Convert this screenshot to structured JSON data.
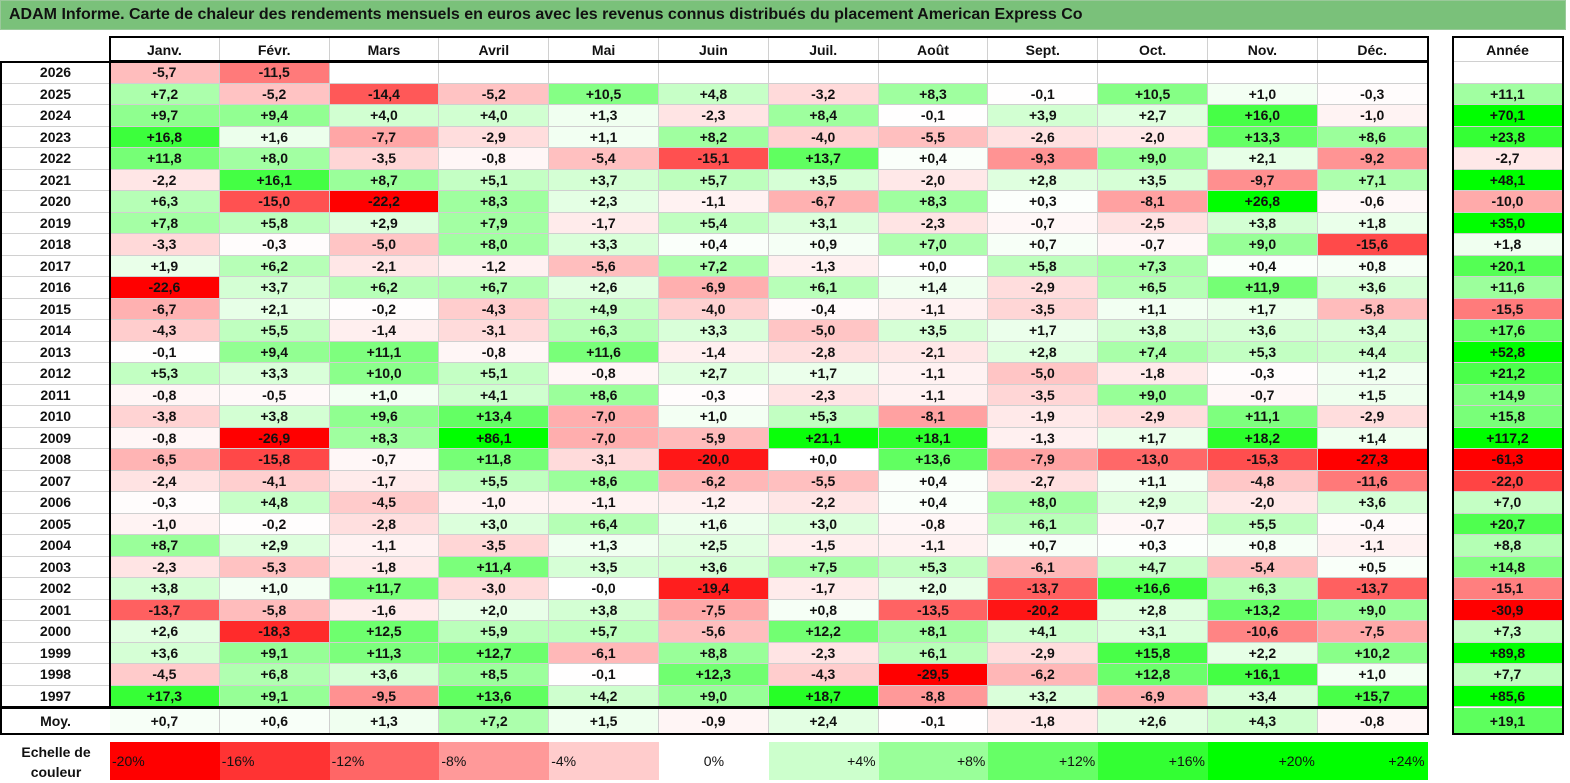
{
  "title": "ADAM Informe. Carte de chaleur des rendements mensuels en euros avec les revenus connus distribués du placement American Express Co",
  "chart_data": {
    "type": "heatmap",
    "title": "ADAM Informe. Carte de chaleur des rendements mensuels en euros avec les revenus connus distribués du placement American Express Co",
    "columns": [
      "Janv.",
      "Févr.",
      "Mars",
      "Avril",
      "Mai",
      "Juin",
      "Juil.",
      "Août",
      "Sept.",
      "Oct.",
      "Nov.",
      "Déc."
    ],
    "year_header": "Année",
    "rows": [
      {
        "label": "2026",
        "values": [
          "-5,7",
          "-11,5",
          "",
          "",
          "",
          "",
          "",
          "",
          "",
          "",
          "",
          ""
        ],
        "year": ""
      },
      {
        "label": "2025",
        "values": [
          "+7,2",
          "-5,2",
          "-14,4",
          "-5,2",
          "+10,5",
          "+4,8",
          "-3,2",
          "+8,3",
          "-0,1",
          "+10,5",
          "+1,0",
          "-0,3"
        ],
        "year": "+11,1"
      },
      {
        "label": "2024",
        "values": [
          "+9,7",
          "+9,4",
          "+4,0",
          "+4,0",
          "+1,3",
          "-2,3",
          "+8,4",
          "-0,1",
          "+3,9",
          "+2,7",
          "+16,0",
          "-1,0"
        ],
        "year": "+70,1"
      },
      {
        "label": "2023",
        "values": [
          "+16,8",
          "+1,6",
          "-7,7",
          "-2,9",
          "+1,1",
          "+8,2",
          "-4,0",
          "-5,5",
          "-2,6",
          "-2,0",
          "+13,3",
          "+8,6"
        ],
        "year": "+23,8"
      },
      {
        "label": "2022",
        "values": [
          "+11,8",
          "+8,0",
          "-3,5",
          "-0,8",
          "-5,4",
          "-15,1",
          "+13,7",
          "+0,4",
          "-9,3",
          "+9,0",
          "+2,1",
          "-9,2"
        ],
        "year": "-2,7"
      },
      {
        "label": "2021",
        "values": [
          "-2,2",
          "+16,1",
          "+8,7",
          "+5,1",
          "+3,7",
          "+5,7",
          "+3,5",
          "-2,0",
          "+2,8",
          "+3,5",
          "-9,7",
          "+7,1"
        ],
        "year": "+48,1"
      },
      {
        "label": "2020",
        "values": [
          "+6,3",
          "-15,0",
          "-22,2",
          "+8,3",
          "+2,3",
          "-1,1",
          "-6,7",
          "+8,3",
          "+0,3",
          "-8,1",
          "+26,8",
          "-0,6"
        ],
        "year": "-10,0"
      },
      {
        "label": "2019",
        "values": [
          "+7,8",
          "+5,8",
          "+2,9",
          "+7,9",
          "-1,7",
          "+5,4",
          "+3,1",
          "-2,3",
          "-0,7",
          "-2,5",
          "+3,8",
          "+1,8"
        ],
        "year": "+35,0"
      },
      {
        "label": "2018",
        "values": [
          "-3,3",
          "-0,3",
          "-5,0",
          "+8,0",
          "+3,3",
          "+0,4",
          "+0,9",
          "+7,0",
          "+0,7",
          "-0,7",
          "+9,0",
          "-15,6"
        ],
        "year": "+1,8"
      },
      {
        "label": "2017",
        "values": [
          "+1,9",
          "+6,2",
          "-2,1",
          "-1,2",
          "-5,6",
          "+7,2",
          "-1,3",
          "+0,0",
          "+5,8",
          "+7,3",
          "+0,4",
          "+0,8"
        ],
        "year": "+20,1"
      },
      {
        "label": "2016",
        "values": [
          "-22,6",
          "+3,7",
          "+6,2",
          "+6,7",
          "+2,6",
          "-6,9",
          "+6,1",
          "+1,4",
          "-2,9",
          "+6,5",
          "+11,9",
          "+3,6"
        ],
        "year": "+11,6"
      },
      {
        "label": "2015",
        "values": [
          "-6,7",
          "+2,1",
          "-0,2",
          "-4,3",
          "+4,9",
          "-4,0",
          "-0,4",
          "-1,1",
          "-3,5",
          "+1,1",
          "+1,7",
          "-5,8"
        ],
        "year": "-15,5"
      },
      {
        "label": "2014",
        "values": [
          "-4,3",
          "+5,5",
          "-1,4",
          "-3,1",
          "+6,3",
          "+3,3",
          "-5,0",
          "+3,5",
          "+1,7",
          "+3,8",
          "+3,6",
          "+3,4"
        ],
        "year": "+17,6"
      },
      {
        "label": "2013",
        "values": [
          "-0,1",
          "+9,4",
          "+11,1",
          "-0,8",
          "+11,6",
          "-1,4",
          "-2,8",
          "-2,1",
          "+2,8",
          "+7,4",
          "+5,3",
          "+4,4"
        ],
        "year": "+52,8"
      },
      {
        "label": "2012",
        "values": [
          "+5,3",
          "+3,3",
          "+10,0",
          "+5,1",
          "-0,8",
          "+2,7",
          "+1,7",
          "-1,1",
          "-5,0",
          "-1,8",
          "-0,3",
          "+1,2"
        ],
        "year": "+21,2"
      },
      {
        "label": "2011",
        "values": [
          "-0,8",
          "-0,5",
          "+1,0",
          "+4,1",
          "+8,6",
          "-0,3",
          "-2,3",
          "-1,1",
          "-3,5",
          "+9,0",
          "-0,7",
          "+1,5"
        ],
        "year": "+14,9"
      },
      {
        "label": "2010",
        "values": [
          "-3,8",
          "+3,8",
          "+9,6",
          "+13,4",
          "-7,0",
          "+1,0",
          "+5,3",
          "-8,1",
          "-1,9",
          "-2,9",
          "+11,1",
          "-2,9"
        ],
        "year": "+15,8"
      },
      {
        "label": "2009",
        "values": [
          "-0,8",
          "-26,9",
          "+8,3",
          "+86,1",
          "-7,0",
          "-5,9",
          "+21,1",
          "+18,1",
          "-1,3",
          "+1,7",
          "+18,2",
          "+1,4"
        ],
        "year": "+117,2"
      },
      {
        "label": "2008",
        "values": [
          "-6,5",
          "-15,8",
          "-0,7",
          "+11,8",
          "-3,1",
          "-20,0",
          "+0,0",
          "+13,6",
          "-7,9",
          "-13,0",
          "-15,3",
          "-27,3"
        ],
        "year": "-61,3"
      },
      {
        "label": "2007",
        "values": [
          "-2,4",
          "-4,1",
          "-1,7",
          "+5,5",
          "+8,6",
          "-6,2",
          "-5,5",
          "+0,4",
          "-2,7",
          "+1,1",
          "-4,8",
          "-11,6"
        ],
        "year": "-22,0"
      },
      {
        "label": "2006",
        "values": [
          "-0,3",
          "+4,8",
          "-4,5",
          "-1,0",
          "-1,1",
          "-1,2",
          "-2,2",
          "+0,4",
          "+8,0",
          "+2,9",
          "-2,0",
          "+3,6"
        ],
        "year": "+7,0"
      },
      {
        "label": "2005",
        "values": [
          "-1,0",
          "-0,2",
          "-2,8",
          "+3,0",
          "+6,4",
          "+1,6",
          "+3,0",
          "-0,8",
          "+6,1",
          "-0,7",
          "+5,5",
          "-0,4"
        ],
        "year": "+20,7"
      },
      {
        "label": "2004",
        "values": [
          "+8,7",
          "+2,9",
          "-1,1",
          "-3,5",
          "+1,3",
          "+2,5",
          "-1,5",
          "-1,1",
          "+0,7",
          "+0,3",
          "+0,8",
          "-1,1"
        ],
        "year": "+8,8"
      },
      {
        "label": "2003",
        "values": [
          "-2,3",
          "-5,3",
          "-1,8",
          "+11,4",
          "+3,5",
          "+3,6",
          "+7,5",
          "+5,3",
          "-6,1",
          "+4,7",
          "-5,4",
          "+0,5"
        ],
        "year": "+14,8"
      },
      {
        "label": "2002",
        "values": [
          "+3,8",
          "+1,0",
          "+11,7",
          "-3,0",
          "-0,0",
          "-19,4",
          "-1,7",
          "+2,0",
          "-13,7",
          "+16,6",
          "+6,3",
          "-13,7"
        ],
        "year": "-15,1"
      },
      {
        "label": "2001",
        "values": [
          "-13,7",
          "-5,8",
          "-1,6",
          "+2,0",
          "+3,8",
          "-7,5",
          "+0,8",
          "-13,5",
          "-20,2",
          "+2,8",
          "+13,2",
          "+9,0"
        ],
        "year": "-30,9"
      },
      {
        "label": "2000",
        "values": [
          "+2,6",
          "-18,3",
          "+12,5",
          "+5,9",
          "+5,7",
          "-5,6",
          "+12,2",
          "+8,1",
          "+4,1",
          "+3,1",
          "-10,6",
          "-7,5"
        ],
        "year": "+7,3"
      },
      {
        "label": "1999",
        "values": [
          "+3,6",
          "+9,1",
          "+11,3",
          "+12,7",
          "-6,1",
          "+8,8",
          "-2,3",
          "+6,1",
          "-2,9",
          "+15,8",
          "+2,2",
          "+10,2"
        ],
        "year": "+89,8"
      },
      {
        "label": "1998",
        "values": [
          "-4,5",
          "+6,8",
          "+3,6",
          "+8,5",
          "-0,1",
          "+12,3",
          "-4,3",
          "-29,5",
          "-6,2",
          "+12,8",
          "+16,1",
          "+1,0"
        ],
        "year": "+7,7"
      },
      {
        "label": "1997",
        "values": [
          "+17,3",
          "+9,1",
          "-9,5",
          "+13,6",
          "+4,2",
          "+9,0",
          "+18,7",
          "-8,8",
          "+3,2",
          "-6,9",
          "+3,4",
          "+15,7"
        ],
        "year": "+85,6"
      }
    ],
    "average": {
      "label": "Moy.",
      "values": [
        "+0,7",
        "+0,6",
        "+1,3",
        "+7,2",
        "+1,5",
        "-0,9",
        "+2,4",
        "-0,1",
        "-1,8",
        "+2,6",
        "+4,3",
        "-0,8"
      ],
      "year": "+19,1"
    },
    "color_scale": {
      "label": "Echelle de couleur",
      "stops": [
        {
          "label": "-20%",
          "color": "#ff0000"
        },
        {
          "label": "-16%",
          "color": "#ff3333"
        },
        {
          "label": "-12%",
          "color": "#ff6666"
        },
        {
          "label": "-8%",
          "color": "#ff9999"
        },
        {
          "label": "-4%",
          "color": "#ffcccc"
        },
        {
          "label": "0%",
          "color": "#ffffff"
        },
        {
          "label": "+4%",
          "color": "#ccffcc"
        },
        {
          "label": "+8%",
          "color": "#99ff99"
        },
        {
          "label": "+12%",
          "color": "#66ff66"
        },
        {
          "label": "+16%",
          "color": "#33ff33"
        },
        {
          "label": "+20%",
          "color": "#00ff00"
        },
        {
          "label": "+24%",
          "color": "#00ff00"
        }
      ]
    }
  }
}
